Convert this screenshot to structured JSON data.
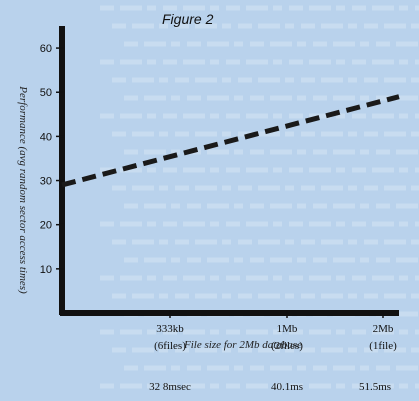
{
  "chart_data": {
    "type": "line",
    "title": "Figure 2",
    "xlabel": "File size for 2Mb database",
    "ylabel": "Performance (avg random sector access times)",
    "categories": [
      {
        "size": "333kb",
        "files": "(6files)",
        "time": "32 8msec"
      },
      {
        "size": "1Mb",
        "files": "(2files)",
        "time": "40.1ms"
      },
      {
        "size": "2Mb",
        "files": "(1file)",
        "time": "51.5ms"
      }
    ],
    "yticks": [
      10,
      20,
      30,
      40,
      50,
      60
    ],
    "ylim": [
      0,
      65
    ],
    "series": [
      {
        "style": "dashed",
        "color": "#1a1a1a",
        "x": [
          0,
          1
        ],
        "y": [
          29,
          49
        ]
      }
    ]
  },
  "background": {
    "paper": "#b9d2ec",
    "faint_text_color": "#ffffff"
  }
}
